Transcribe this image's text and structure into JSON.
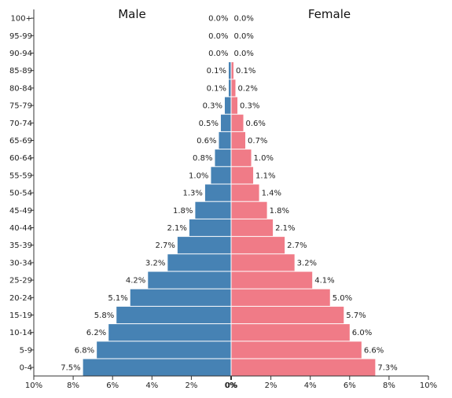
{
  "chart_data": {
    "type": "bar",
    "subtype": "population-pyramid",
    "title": "",
    "age_groups": [
      "100+",
      "95-99",
      "90-94",
      "85-89",
      "80-84",
      "75-79",
      "70-74",
      "65-69",
      "60-64",
      "55-59",
      "50-54",
      "45-49",
      "40-44",
      "35-39",
      "30-34",
      "25-29",
      "20-24",
      "15-19",
      "10-14",
      "5-9",
      "0-4"
    ],
    "series": [
      {
        "name": "Male",
        "side": "left",
        "color": "#4682b4",
        "values": [
          0.0,
          0.0,
          0.0,
          0.1,
          0.1,
          0.3,
          0.5,
          0.6,
          0.8,
          1.0,
          1.3,
          1.8,
          2.1,
          2.7,
          3.2,
          4.2,
          5.1,
          5.8,
          6.2,
          6.8,
          7.5
        ],
        "labels": [
          "0.0%",
          "0.0%",
          "0.0%",
          "0.1%",
          "0.1%",
          "0.3%",
          "0.5%",
          "0.6%",
          "0.8%",
          "1.0%",
          "1.3%",
          "1.8%",
          "2.1%",
          "2.7%",
          "3.2%",
          "4.2%",
          "5.1%",
          "5.8%",
          "6.2%",
          "6.8%",
          "7.5%"
        ]
      },
      {
        "name": "Female",
        "side": "right",
        "color": "#f07b87",
        "values": [
          0.0,
          0.0,
          0.0,
          0.1,
          0.2,
          0.3,
          0.6,
          0.7,
          1.0,
          1.1,
          1.4,
          1.8,
          2.1,
          2.7,
          3.2,
          4.1,
          5.0,
          5.7,
          6.0,
          6.6,
          7.3
        ],
        "labels": [
          "0.0%",
          "0.0%",
          "0.0%",
          "0.1%",
          "0.2%",
          "0.3%",
          "0.6%",
          "0.7%",
          "1.0%",
          "1.1%",
          "1.4%",
          "1.8%",
          "2.1%",
          "2.7%",
          "3.2%",
          "4.1%",
          "5.0%",
          "5.7%",
          "6.0%",
          "6.6%",
          "7.3%"
        ]
      }
    ],
    "x_range_percent": [
      0,
      10
    ],
    "x_ticks": {
      "left": [
        "10%",
        "8%",
        "6%",
        "4%",
        "2%",
        "0%"
      ],
      "right": [
        "0%",
        "2%",
        "4%",
        "6%",
        "8%",
        "10%"
      ]
    },
    "grid": false,
    "legend": "sex labels at top of each side"
  }
}
